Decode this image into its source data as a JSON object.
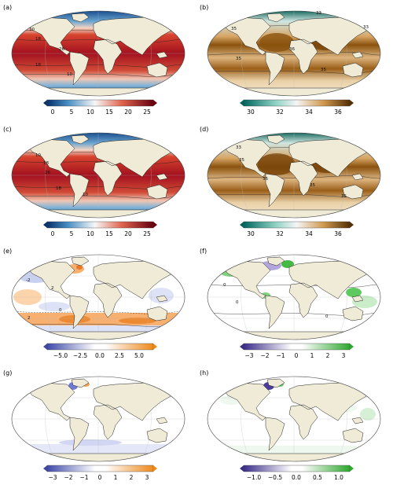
{
  "panels": [
    {
      "id": "a",
      "label": "(a)",
      "type": "temperature",
      "colorbar": {
        "ticks": [
          "0",
          "5",
          "10",
          "15",
          "20",
          "25"
        ]
      },
      "contours": [
        "10",
        "18",
        "26",
        "18",
        "10"
      ]
    },
    {
      "id": "b",
      "label": "(b)",
      "type": "salinity",
      "colorbar": {
        "ticks": [
          "30",
          "32",
          "34",
          "36"
        ]
      },
      "contours": [
        "33",
        "35",
        "36",
        "35",
        "35",
        "33"
      ]
    },
    {
      "id": "c",
      "label": "(c)",
      "type": "temperature",
      "colorbar": {
        "ticks": [
          "0",
          "5",
          "10",
          "15",
          "20",
          "25"
        ]
      },
      "contours": [
        "10",
        "18",
        "26",
        "18",
        "10"
      ]
    },
    {
      "id": "d",
      "label": "(d)",
      "type": "salinity",
      "colorbar": {
        "ticks": [
          "30",
          "32",
          "34",
          "36"
        ]
      },
      "contours": [
        "33",
        "35",
        "36",
        "35",
        "35"
      ]
    },
    {
      "id": "e",
      "label": "(e)",
      "type": "temp-diff",
      "colorbar": {
        "ticks": [
          "−5.0",
          "−2.5",
          "0.0",
          "2.5",
          "5.0"
        ]
      },
      "contours": [
        "2",
        "-2",
        "0",
        "2"
      ]
    },
    {
      "id": "f",
      "label": "(f)",
      "type": "sal-diff",
      "colorbar": {
        "ticks": [
          "−3",
          "−2",
          "−1",
          "0",
          "1",
          "2",
          "3"
        ]
      },
      "contours": [
        "0",
        "0",
        "0"
      ]
    },
    {
      "id": "g",
      "label": "(g)",
      "type": "temp-diff2",
      "colorbar": {
        "ticks": [
          "−3",
          "−2",
          "−1",
          "0",
          "1",
          "2",
          "3"
        ]
      },
      "contours": []
    },
    {
      "id": "h",
      "label": "(h)",
      "type": "sal-diff2",
      "colorbar": {
        "ticks": [
          "−1.0",
          "−0.5",
          "0.0",
          "0.5",
          "1.0"
        ]
      },
      "contours": []
    }
  ],
  "colors": {
    "land": "#efebd6",
    "coast": "#222222",
    "ocean_warm": "#b2182b",
    "ocean_cold": "#2166ac",
    "salty": "#8c510a",
    "fresh": "#01665e",
    "pos_orange": "#f39b3a",
    "neg_blue": "#6b72c8",
    "pos_green": "#3bbf3b",
    "neg_purple": "#4b3c99"
  }
}
